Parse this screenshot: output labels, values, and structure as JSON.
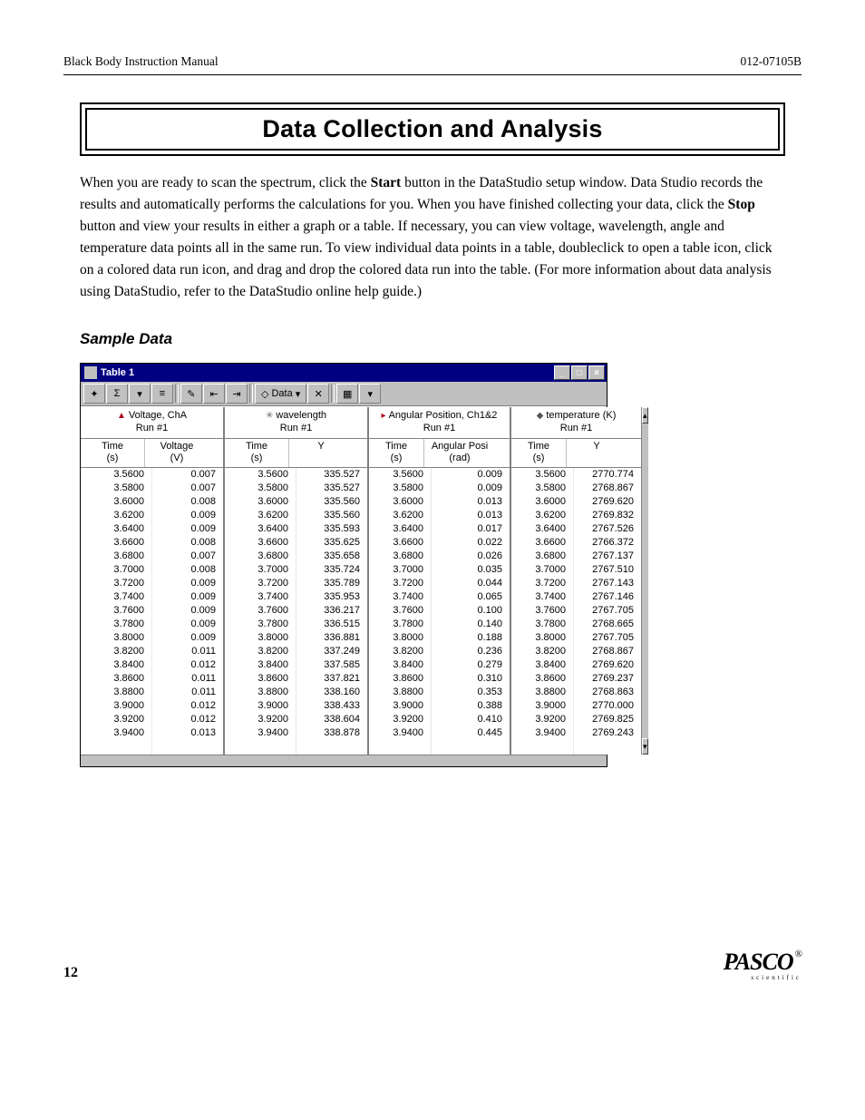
{
  "header": {
    "left": "Black Body Instruction Manual",
    "right": "012-07105B"
  },
  "title": "Data Collection and Analysis",
  "paragraph_pre1": "When you are ready to scan the spectrum, click the ",
  "paragraph_bold1": "Start",
  "paragraph_mid1": " button in the DataStudio setup window.  Data Studio records the results and automatically performs the calculations for you.  When you have finished collecting your data, click the ",
  "paragraph_bold2": "Stop",
  "paragraph_post": " button and view your results in either a graph or a table.  If necessary, you can view voltage, wavelength, angle and temperature data points all in the same run. To view individual data points in a table, doubleclick to open a table icon, click on a colored data run icon, and drag and drop the colored data run into the table. (For more information about data analysis using DataStudio, refer to the DataStudio online help guide.)",
  "subheading": "Sample Data",
  "window": {
    "title": "Table 1",
    "toolbar": {
      "sigma": "Σ",
      "data_label": "Data",
      "x": "✕"
    },
    "panels": [
      {
        "marker": "▲",
        "marker_color": "#b00020",
        "title": "Voltage, ChA",
        "sub": "Run #1",
        "col1_header": "Time",
        "col1_unit": "(s)",
        "col2_header": "Voltage",
        "col2_unit": "(V)",
        "w1": 70,
        "w2": 70
      },
      {
        "marker": "✳",
        "marker_color": "#666",
        "title": "wavelength",
        "sub": "Run #1",
        "col1_header": "Time",
        "col1_unit": "(s)",
        "col2_header": "Y",
        "col2_unit": "",
        "w1": 70,
        "w2": 70
      },
      {
        "marker": "▸",
        "marker_color": "#b00020",
        "title": "Angular Position, Ch1&2",
        "sub": "Run #1",
        "col1_header": "Time",
        "col1_unit": "(s)",
        "col2_header": "Angular Posi",
        "col2_unit": "(rad)",
        "w1": 60,
        "w2": 78
      },
      {
        "marker": "◆",
        "marker_color": "#555",
        "title": "temperature (K)",
        "sub": "Run #1",
        "col1_header": "Time",
        "col1_unit": "(s)",
        "col2_header": "Y",
        "col2_unit": "",
        "w1": 60,
        "w2": 66
      }
    ],
    "times": [
      "3.5600",
      "3.5800",
      "3.6000",
      "3.6200",
      "3.6400",
      "3.6600",
      "3.6800",
      "3.7000",
      "3.7200",
      "3.7400",
      "3.7600",
      "3.7800",
      "3.8000",
      "3.8200",
      "3.8400",
      "3.8600",
      "3.8800",
      "3.9000",
      "3.9200",
      "3.9400"
    ],
    "voltage": [
      "0.007",
      "0.007",
      "0.008",
      "0.009",
      "0.009",
      "0.008",
      "0.007",
      "0.008",
      "0.009",
      "0.009",
      "0.009",
      "0.009",
      "0.009",
      "0.011",
      "0.012",
      "0.011",
      "0.011",
      "0.012",
      "0.012",
      "0.013"
    ],
    "wavelength": [
      "335.527",
      "335.527",
      "335.560",
      "335.560",
      "335.593",
      "335.625",
      "335.658",
      "335.724",
      "335.789",
      "335.953",
      "336.217",
      "336.515",
      "336.881",
      "337.249",
      "337.585",
      "337.821",
      "338.160",
      "338.433",
      "338.604",
      "338.878"
    ],
    "angpos": [
      "0.009",
      "0.009",
      "0.013",
      "0.013",
      "0.017",
      "0.022",
      "0.026",
      "0.035",
      "0.044",
      "0.065",
      "0.100",
      "0.140",
      "0.188",
      "0.236",
      "0.279",
      "0.310",
      "0.353",
      "0.388",
      "0.410",
      "0.445"
    ],
    "temp": [
      "2770.774",
      "2768.867",
      "2769.620",
      "2769.832",
      "2767.526",
      "2766.372",
      "2767.137",
      "2767.510",
      "2767.143",
      "2767.146",
      "2767.705",
      "2768.665",
      "2767.705",
      "2768.867",
      "2769.620",
      "2769.237",
      "2768.863",
      "2770.000",
      "2769.825",
      "2769.243"
    ]
  },
  "footer": {
    "page": "12",
    "logo": "PASCO",
    "logo_reg": "®",
    "logo_sub": "scientific"
  }
}
